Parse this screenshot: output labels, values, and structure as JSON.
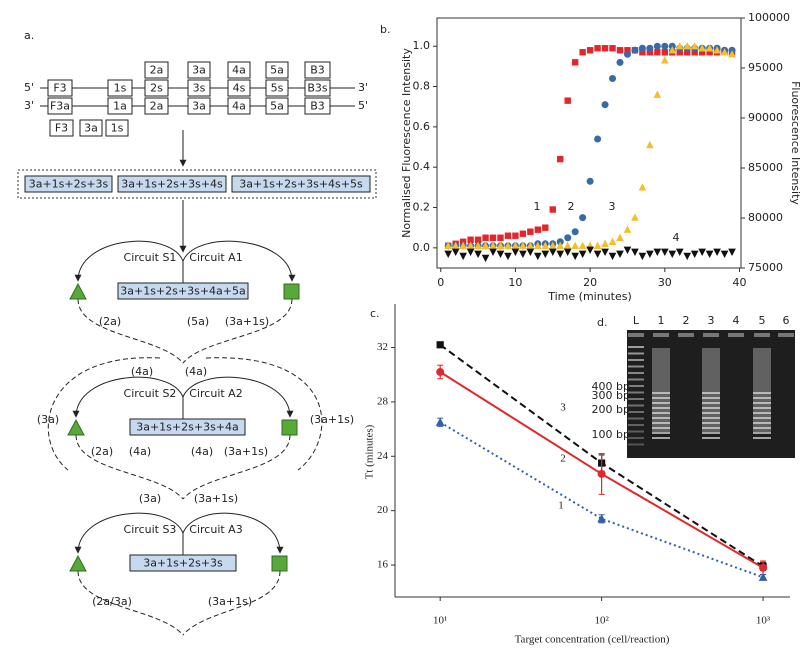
{
  "diagram": {
    "label": "a.",
    "top_boxes": [
      "2a",
      "3a",
      "4a",
      "5a",
      "B3"
    ],
    "strand_top": {
      "left": "5'",
      "right": "3'",
      "boxes": [
        "F3",
        "1s",
        "2s",
        "3s",
        "4s",
        "5s",
        "B3s"
      ]
    },
    "strand_bottom": {
      "left": "3'",
      "right": "5'",
      "boxes": [
        "F3a",
        "1a",
        "2a",
        "3a",
        "4a",
        "5a",
        "B3"
      ]
    },
    "primers": [
      "F3",
      "3a",
      "1s"
    ],
    "products": [
      "3a+1s+2s+3s",
      "3a+1s+2s+3s+4s",
      "3a+1s+2s+3s+4s+5s"
    ],
    "circuits": [
      {
        "left": "Circuit S1",
        "right": "Circuit A1",
        "product": "3a+1s+2s+3s+4a+5a",
        "labels": [
          "(2a)",
          "(5a)",
          "(3a+1s)"
        ]
      },
      {
        "left": "Circuit S2",
        "right": "Circuit A2",
        "product": "3a+1s+2s+3s+4a",
        "labels": [
          "(4a)",
          "(4a)",
          "(3a)",
          "(3a+1s)",
          "(2a)",
          "(4a)",
          "(4a)",
          "(3a+1s)"
        ]
      },
      {
        "left": "Circuit S3",
        "right": "Circuit A3",
        "product": "3a+1s+2s+3s",
        "labels": [
          "(3a)",
          "(3a+1s)",
          "(2a/3a)",
          "(3a+1s)"
        ]
      }
    ]
  },
  "chart_data": [
    {
      "type": "scatter",
      "label": "b.",
      "xlabel": "Time (minutes)",
      "ylabel": "Normalised Fluorescence Intensity",
      "y2label": "Fluorescence Intensity",
      "xlim": [
        -0.5,
        40.2
      ],
      "xticks": [
        0,
        10,
        20,
        30,
        40
      ],
      "ylim": [
        -0.1,
        1.14
      ],
      "yticks": [
        {
          "value": 0,
          "label": "0.0"
        },
        0.2,
        0.4,
        0.6,
        0.8,
        {
          "value": 1,
          "label": "1.0"
        }
      ],
      "y2lim": [
        75000,
        100000
      ],
      "y2ticks": [
        75000,
        80000,
        85000,
        90000,
        95000,
        100000
      ],
      "x": [
        1,
        2,
        3,
        4,
        5,
        6,
        7,
        8,
        9,
        10,
        11,
        12,
        13,
        14,
        15,
        16,
        17,
        18,
        19,
        20,
        21,
        22,
        23,
        24,
        25,
        26,
        27,
        28,
        29,
        30,
        31,
        32,
        33,
        34,
        35,
        36,
        37,
        38,
        39
      ],
      "series": [
        {
          "marker": "square",
          "color": "#e3262b",
          "values": [
            0.01,
            0.02,
            0.03,
            0.04,
            0.04,
            0.05,
            0.05,
            0.05,
            0.06,
            0.06,
            0.07,
            0.08,
            0.09,
            0.1,
            0.19,
            0.44,
            0.73,
            0.92,
            0.97,
            0.98,
            0.99,
            0.99,
            0.99,
            0.98,
            0.98,
            0.98,
            0.97,
            0.97,
            0.97,
            0.97,
            0.97,
            0.97,
            0.97,
            0.97,
            0.97,
            0.97,
            0.97,
            0.97,
            0.97
          ]
        },
        {
          "marker": "circle",
          "color": "#3a6aa6",
          "values": [
            0.01,
            0.01,
            0.01,
            0.01,
            0.01,
            0.01,
            0.01,
            0.01,
            0.01,
            0.01,
            0.01,
            0.01,
            0.02,
            0.02,
            0.02,
            0.03,
            0.05,
            0.08,
            0.15,
            0.33,
            0.54,
            0.71,
            0.84,
            0.92,
            0.96,
            0.98,
            0.99,
            0.99,
            1.0,
            1.0,
            1.0,
            0.99,
            0.99,
            0.99,
            0.99,
            0.99,
            0.99,
            0.98,
            0.98
          ]
        },
        {
          "marker": "triangle-up",
          "color": "#f4bf2e",
          "values": [
            0.01,
            0.01,
            0.01,
            0.01,
            0.01,
            0.01,
            0.01,
            0.01,
            0.01,
            0.01,
            0.01,
            0.01,
            0.01,
            0.01,
            0.01,
            0.01,
            0.01,
            0.01,
            0.01,
            0.01,
            0.01,
            0.02,
            0.03,
            0.05,
            0.09,
            0.15,
            0.3,
            0.51,
            0.76,
            0.93,
            0.98,
            1.0,
            1.0,
            1.0,
            0.99,
            0.99,
            0.98,
            0.97,
            0.96
          ]
        },
        {
          "marker": "triangle-down",
          "color": "#111111",
          "values": [
            -0.03,
            -0.02,
            -0.04,
            -0.02,
            -0.03,
            -0.05,
            -0.02,
            -0.03,
            -0.04,
            -0.02,
            -0.03,
            -0.02,
            -0.04,
            -0.03,
            -0.02,
            -0.03,
            -0.02,
            -0.04,
            -0.03,
            -0.01,
            -0.03,
            -0.02,
            -0.04,
            -0.03,
            -0.01,
            -0.02,
            -0.04,
            -0.03,
            -0.02,
            -0.02,
            -0.03,
            -0.02,
            -0.04,
            -0.03,
            -0.02,
            -0.03,
            -0.02,
            -0.03,
            -0.02
          ]
        }
      ],
      "annotations": [
        "1",
        "2",
        "3",
        "4"
      ]
    },
    {
      "type": "scatter",
      "label": "c.",
      "xlabel": "Target concentration (cell/reaction)",
      "ylabel": "Tt (minutes)",
      "xscale": "log",
      "xlim": [
        5.25,
        1468
      ],
      "xticks": [
        {
          "value": 10,
          "label": "10¹"
        },
        {
          "value": 100,
          "label": "10²"
        },
        {
          "value": 1000,
          "label": "10³"
        }
      ],
      "ylim": [
        13.65,
        35.2
      ],
      "yticks": [
        16,
        20,
        24,
        28,
        32
      ],
      "x": [
        10,
        100,
        1000
      ],
      "series": [
        {
          "marker": "square",
          "color": "#111111",
          "line_style": "dashed",
          "values": [
            32.2,
            23.5,
            15.9
          ],
          "errors": [
            0.2,
            0.6,
            0.3
          ]
        },
        {
          "marker": "circle",
          "color": "#e3262b",
          "line_style": "solid",
          "values": [
            30.2,
            22.7,
            15.8
          ],
          "errors": [
            0.5,
            1.5,
            0.5
          ]
        },
        {
          "marker": "triangle-up",
          "color": "#2f5fa8",
          "line_style": "dotted",
          "values": [
            26.5,
            19.4,
            15.1
          ],
          "errors": [
            0.3,
            0.3,
            0.2
          ]
        }
      ],
      "annotations": [
        "3",
        "2",
        "1"
      ]
    }
  ],
  "gel": {
    "label": "d.",
    "lanes": [
      "L",
      "1",
      "2",
      "3",
      "4",
      "5",
      "6"
    ],
    "sizes": [
      "400 bp",
      "300 bp",
      "200 bp",
      "100 bp"
    ]
  }
}
